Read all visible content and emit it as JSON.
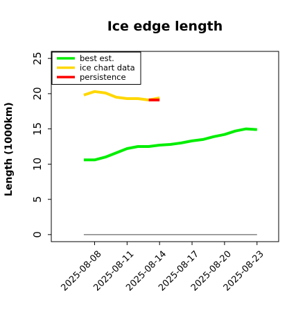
{
  "chart_data": {
    "type": "line",
    "title": "Ice edge length",
    "xlabel": "",
    "ylabel": "Length (1000km)",
    "ylim": [
      -1,
      26
    ],
    "xlim": [
      "2025-08-04T00:00",
      "2025-08-25T00:00"
    ],
    "yticks": [
      0,
      5,
      10,
      15,
      20,
      25
    ],
    "xticks": [
      "2025-08-08",
      "2025-08-11",
      "2025-08-14",
      "2025-08-17",
      "2025-08-20",
      "2025-08-23"
    ],
    "grid": false,
    "legend": {
      "placement": "top-left"
    },
    "series": [
      {
        "name": "best est.",
        "color": "#00ee00",
        "x": [
          "2025-08-07",
          "2025-08-08",
          "2025-08-09",
          "2025-08-10",
          "2025-08-11",
          "2025-08-12",
          "2025-08-13",
          "2025-08-14",
          "2025-08-15",
          "2025-08-16",
          "2025-08-17",
          "2025-08-18",
          "2025-08-19",
          "2025-08-20",
          "2025-08-21",
          "2025-08-22",
          "2025-08-23"
        ],
        "y": [
          10.6,
          10.6,
          11.0,
          11.6,
          12.2,
          12.5,
          12.5,
          12.7,
          12.8,
          13.0,
          13.3,
          13.5,
          13.9,
          14.2,
          14.7,
          15.0,
          14.9
        ]
      },
      {
        "name": "ice chart data",
        "color": "#ffd700",
        "x": [
          "2025-08-07",
          "2025-08-08",
          "2025-08-09",
          "2025-08-10",
          "2025-08-11",
          "2025-08-12",
          "2025-08-13",
          "2025-08-14"
        ],
        "y": [
          19.8,
          20.3,
          20.1,
          19.5,
          19.3,
          19.3,
          19.1,
          19.4
        ]
      },
      {
        "name": "persistence",
        "color": "#ff0000",
        "x": [
          "2025-08-13",
          "2025-08-14"
        ],
        "y": [
          19.1,
          19.1
        ]
      },
      {
        "name": "",
        "color": "#808080",
        "x": [
          "2025-08-07",
          "2025-08-23"
        ],
        "y": [
          0,
          0
        ]
      }
    ]
  }
}
